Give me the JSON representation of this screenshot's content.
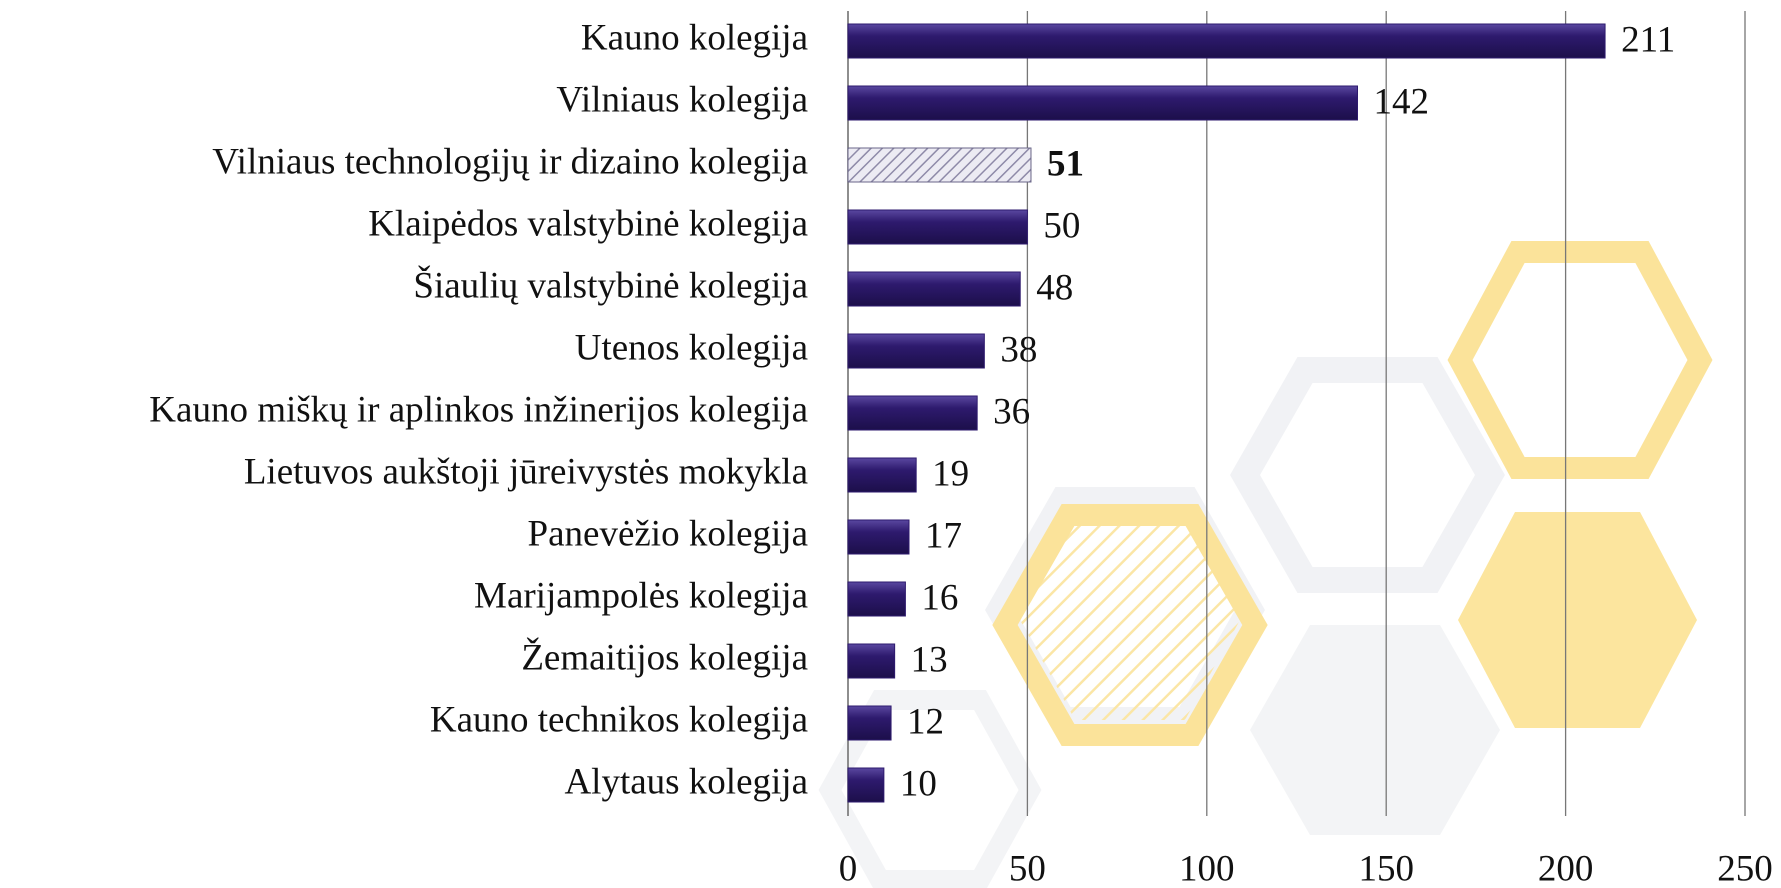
{
  "chart_data": {
    "type": "barh",
    "categories": [
      "Kauno kolegija",
      "Vilniaus kolegija",
      "Vilniaus technologijų ir dizaino kolegija",
      "Klaipėdos valstybinė kolegija",
      "Šiaulių valstybinė kolegija",
      "Utenos kolegija",
      "Kauno miškų ir aplinkos inžinerijos kolegija",
      "Lietuvos aukštoji jūreivystės mokykla",
      "Panevėžio kolegija",
      "Marijampolės kolegija",
      "Žemaitijos kolegija",
      "Kauno technikos kolegija",
      "Alytaus kolegija"
    ],
    "values": [
      211,
      142,
      51,
      50,
      48,
      38,
      36,
      19,
      17,
      16,
      13,
      12,
      10
    ],
    "color": "#2e1a6e",
    "highlight": "Vilniaus technologijų ir dizaino kolegija",
    "xlim": [
      0,
      250
    ],
    "xticks": [
      0,
      50,
      100,
      150,
      200,
      250
    ],
    "grid": true
  }
}
